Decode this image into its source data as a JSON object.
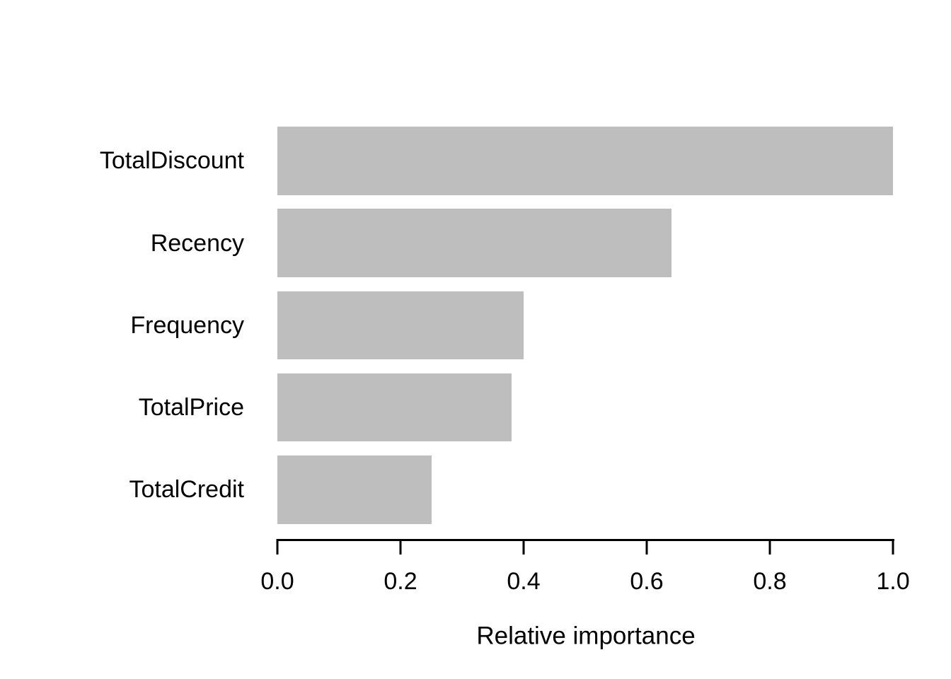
{
  "chart_data": {
    "type": "bar",
    "orientation": "horizontal",
    "title": "",
    "xlabel": "Relative importance",
    "ylabel": "",
    "categories": [
      "TotalDiscount",
      "Recency",
      "Frequency",
      "TotalPrice",
      "TotalCredit"
    ],
    "values": [
      1.0,
      0.64,
      0.4,
      0.38,
      0.25
    ],
    "xlim": [
      0.0,
      1.0
    ],
    "xticks": [
      0.0,
      0.2,
      0.4,
      0.6,
      0.8,
      1.0
    ],
    "xtick_labels": [
      "0.0",
      "0.2",
      "0.4",
      "0.6",
      "0.8",
      "1.0"
    ],
    "grid": false,
    "legend": false,
    "bar_color": "#BEBEBE",
    "background_color": "#FFFFFF",
    "text_color": "#000000",
    "axis_color": "#000000"
  }
}
